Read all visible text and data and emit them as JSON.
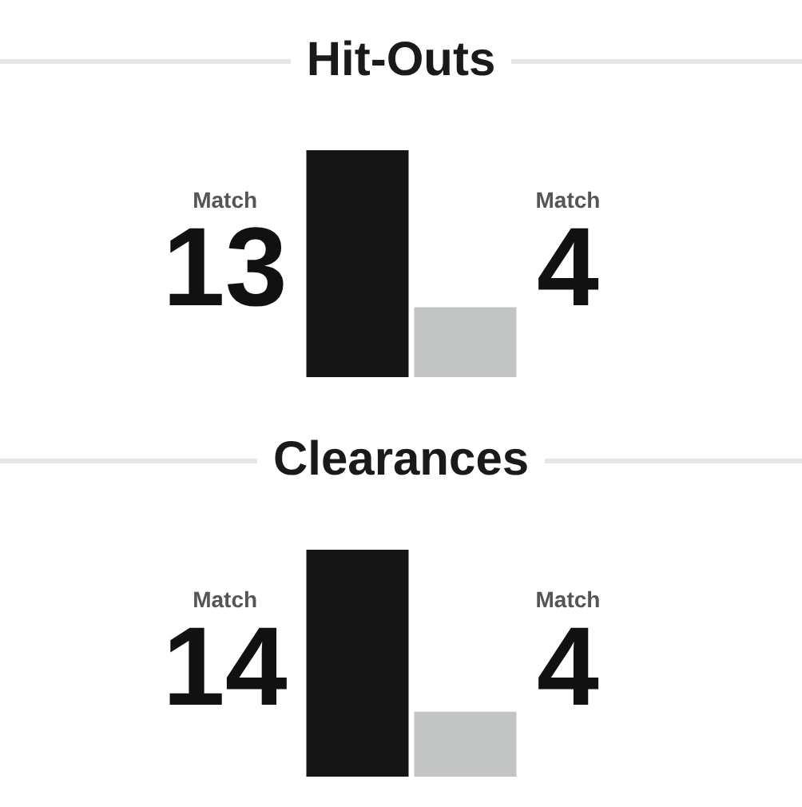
{
  "chart_data": [
    {
      "type": "bar",
      "title": "Hit-Outs",
      "categories": [
        "Match",
        "Match"
      ],
      "values": [
        13,
        4
      ],
      "colors": [
        "#151515",
        "#c3c5c5"
      ],
      "data_labels": true
    },
    {
      "type": "bar",
      "title": "Clearances",
      "categories": [
        "Match",
        "Match"
      ],
      "values": [
        14,
        4
      ],
      "colors": [
        "#151515",
        "#c3c5c5"
      ],
      "data_labels": true
    }
  ]
}
